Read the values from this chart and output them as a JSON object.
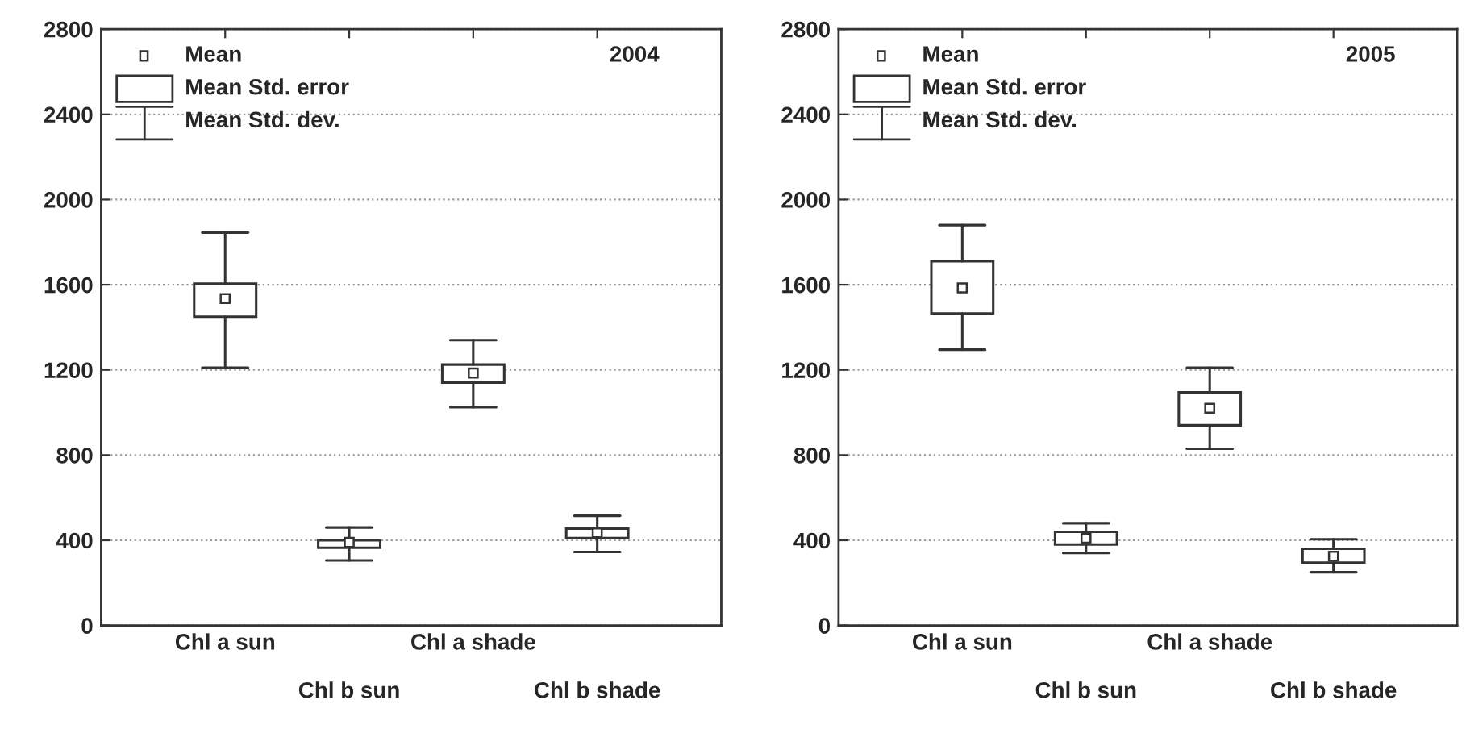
{
  "chart_data": [
    {
      "type": "box",
      "categories": [
        "Chl a sun",
        "Chl b sun",
        "Chl a shade",
        "Chl b shade"
      ],
      "boxes": [
        {
          "low": 1210,
          "q1": 1450,
          "q3": 1605,
          "high": 1845,
          "mean": 1535
        },
        {
          "low": 305,
          "q1": 365,
          "q3": 400,
          "high": 460,
          "mean": 390
        },
        {
          "low": 1025,
          "q1": 1140,
          "q3": 1225,
          "high": 1340,
          "mean": 1185
        },
        {
          "low": 345,
          "q1": 410,
          "q3": 455,
          "high": 515,
          "mean": 435
        }
      ],
      "ylim": [
        0,
        2800
      ],
      "yticks": [
        0,
        400,
        800,
        1200,
        1600,
        2000,
        2400,
        2800
      ],
      "grid": "y",
      "annotations": [
        "Mean",
        "Mean Std. error",
        "Mean Std. dev.",
        "2004"
      ]
    },
    {
      "type": "box",
      "categories": [
        "Chl a sun",
        "Chl b sun",
        "Chl a shade",
        "Chl b shade"
      ],
      "boxes": [
        {
          "low": 1295,
          "q1": 1465,
          "q3": 1710,
          "high": 1880,
          "mean": 1585
        },
        {
          "low": 340,
          "q1": 380,
          "q3": 440,
          "high": 480,
          "mean": 410
        },
        {
          "low": 830,
          "q1": 940,
          "q3": 1095,
          "high": 1210,
          "mean": 1020
        },
        {
          "low": 250,
          "q1": 295,
          "q3": 360,
          "high": 405,
          "mean": 325
        }
      ],
      "ylim": [
        0,
        2800
      ],
      "yticks": [
        0,
        400,
        800,
        1200,
        1600,
        2000,
        2400,
        2800
      ],
      "grid": "y",
      "annotations": [
        "Mean",
        "Mean Std. error",
        "Mean Std. dev.",
        "2005"
      ]
    }
  ]
}
